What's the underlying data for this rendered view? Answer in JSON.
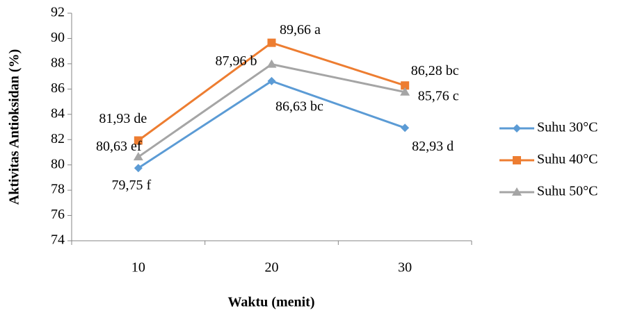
{
  "chart_data": {
    "type": "line",
    "x_label": "Waktu (menit)",
    "y_label": "Aktivitas Antioksidan (%)",
    "categories": [
      10,
      20,
      30
    ],
    "ylim": [
      74,
      92
    ],
    "yticks": [
      74,
      76,
      78,
      80,
      82,
      84,
      86,
      88,
      90,
      92
    ],
    "grid": false,
    "legend": "right",
    "series": [
      {
        "name": "Suhu 30°C",
        "color": "#5b9bd5",
        "marker": "diamond",
        "values": [
          79.75,
          86.63,
          82.93
        ],
        "value_labels": [
          "79,75 f",
          "86,63 bc",
          "82,93 d"
        ]
      },
      {
        "name": "Suhu 40°C",
        "color": "#ed7d31",
        "marker": "square",
        "values": [
          81.93,
          89.66,
          86.28
        ],
        "value_labels": [
          "81,93 de",
          "89,66 a",
          "86,28 bc"
        ]
      },
      {
        "name": "Suhu 50°C",
        "color": "#a5a5a5",
        "marker": "triangle",
        "values": [
          80.63,
          87.96,
          85.76
        ],
        "value_labels": [
          "80,63 ef",
          "87,96 b",
          "85,76 c"
        ]
      }
    ]
  }
}
